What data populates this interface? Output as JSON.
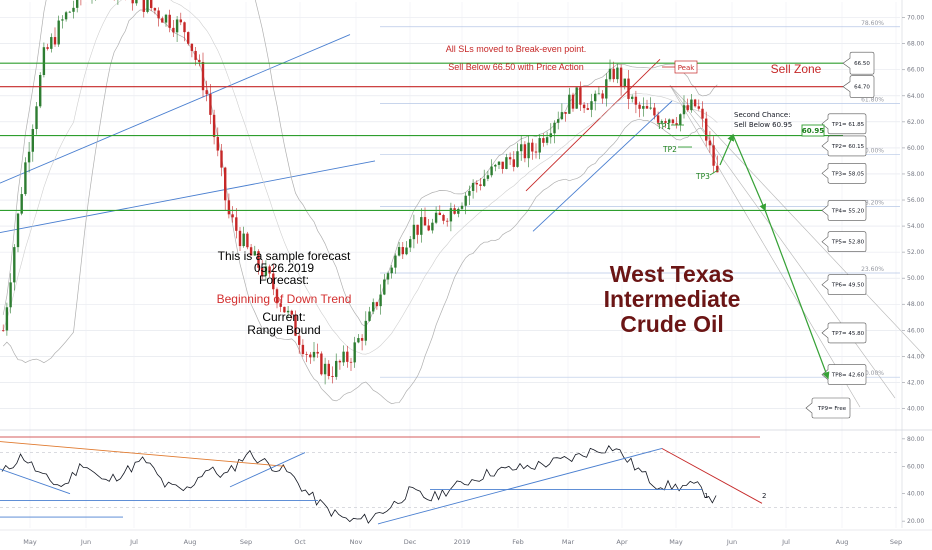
{
  "colors": {
    "green_line": "#2e9e2e",
    "red_line": "#c62828",
    "blue_trend": "#4a7fd0",
    "candle_up": "#2e7d32",
    "candle_down": "#c62828",
    "band": "#b0b0b0",
    "grid": "#e0e3eb",
    "title": "#6b1515",
    "arrow_green": "#36a136"
  },
  "annotations": {
    "title_lines": [
      "West Texas",
      "Intermediate",
      "Crude Oil"
    ],
    "sample_line1": "This is a sample forecast",
    "sample_date": "05.26.2019",
    "forecast_label": "Forecast:",
    "forecast_value": "Beginning of Down Trend",
    "current_label": "Current:",
    "current_value": "Range Bound",
    "top_note1": "All SLs moved to Break-even point.",
    "top_note2": "Sell Below 66.50 with Price Action",
    "sell_zone": "Sell Zone",
    "peak": "Peak",
    "second_chance_1": "Second Chance:",
    "second_chance_2": "Sell Below 60.95",
    "price_box": "60.95",
    "tp1": "TP1",
    "tp2": "TP2",
    "tp3": "TP3",
    "rsi_mark1": "1",
    "rsi_mark2": "2"
  },
  "chart_data": [
    {
      "type": "candlestick",
      "instrument": "West Texas Intermediate Crude Oil",
      "y_ticks": [
        40.0,
        42.0,
        44.0,
        46.0,
        48.0,
        50.0,
        52.0,
        54.0,
        56.0,
        58.0,
        60.0,
        62.0,
        64.0,
        66.0,
        68.0,
        70.0
      ],
      "y_tick_labels": [
        "40.00",
        "42.00",
        "44.00",
        "46.00",
        "48.00",
        "50.00",
        "52.00",
        "54.00",
        "56.00",
        "58.00",
        "60.00",
        "62.00",
        "64.00",
        "66.00",
        "68.00",
        "70.00"
      ],
      "ylim": [
        38.5,
        71.2
      ],
      "x_labels": [
        "May",
        "Jun",
        "Jul",
        "Aug",
        "Sep",
        "Oct",
        "Nov",
        "Dec",
        "2019",
        "Feb",
        "Mar",
        "Apr",
        "May",
        "Jun",
        "Jul",
        "Aug",
        "Sep"
      ],
      "fib_levels": [
        {
          "label": "78.60%",
          "value": 69.3
        },
        {
          "label": "61.80%",
          "value": 63.4
        },
        {
          "label": "50.00%",
          "value": 59.5
        },
        {
          "label": "38.20%",
          "value": 55.5
        },
        {
          "label": "23.60%",
          "value": 50.4
        },
        {
          "label": "0.00%",
          "value": 42.4
        }
      ],
      "horizontal_levels": [
        {
          "value": 66.5,
          "color": "green",
          "callout": "66.50"
        },
        {
          "value": 64.7,
          "color": "red",
          "callout": "64.70"
        },
        {
          "value": 60.95,
          "color": "green"
        },
        {
          "value": 55.2,
          "color": "green"
        }
      ],
      "take_profits": [
        {
          "label": "TP1= 61.85",
          "value": 61.85
        },
        {
          "label": "TP2= 60.15",
          "value": 60.15
        },
        {
          "label": "TP3= 58.05",
          "value": 58.05
        },
        {
          "label": "TP4= 55.20",
          "value": 55.2
        },
        {
          "label": "TP5= 52.80",
          "value": 52.8
        },
        {
          "label": "TP6= 49.50",
          "value": 49.5
        },
        {
          "label": "TP7= 45.80",
          "value": 45.8
        },
        {
          "label": "TP8= 42.60",
          "value": 42.6
        },
        {
          "label": "TP9= Free",
          "value": null
        }
      ],
      "trend_anchor_values": [
        46,
        58,
        67,
        70,
        72,
        73,
        72,
        71,
        70,
        69,
        64,
        55,
        52,
        50,
        47,
        44,
        42.8,
        44,
        47,
        51,
        53.8,
        54,
        55.4,
        57,
        58.2,
        59.3,
        59.9,
        62.3,
        63.9,
        63.4,
        66,
        63,
        62.5,
        62.4,
        63.3,
        57.8
      ]
    },
    {
      "type": "line",
      "name": "oscillator",
      "y_ticks": [
        20.0,
        40.0,
        60.0,
        80.0
      ],
      "y_tick_labels": [
        "20.00",
        "40.00",
        "60.00",
        "80.00"
      ],
      "ylim": [
        15,
        85
      ],
      "reference_levels": [
        30,
        70
      ],
      "anchor_values": [
        55,
        68,
        52,
        45,
        63,
        48,
        56,
        65,
        46,
        42,
        58,
        53,
        70,
        62,
        56,
        40,
        28,
        20,
        22,
        30,
        42,
        36,
        44,
        50,
        56,
        58,
        60,
        63,
        66,
        72,
        74,
        60,
        47,
        45,
        46,
        35
      ]
    }
  ]
}
